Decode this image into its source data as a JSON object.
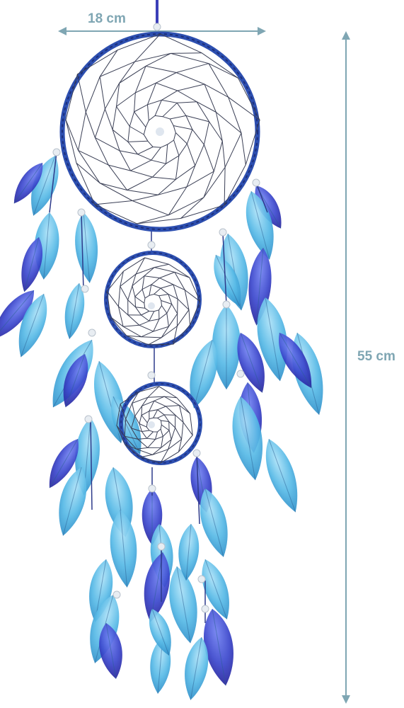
{
  "dimensions": {
    "width_label": "18 cm",
    "height_label": "55 cm"
  },
  "colors": {
    "measure_line": "#7fa6b3",
    "hoop": "#2d4fb0",
    "hoop_dark": "#1c2f7a",
    "web_thread": "#3a3f55",
    "bead": "#e8edf2",
    "feather_light": "#4fb3e3",
    "feather_sky": "#7fcdf0",
    "feather_royal": "#3b4ccf",
    "feather_indigo": "#4a2db0"
  },
  "object": {
    "name": "dream-catcher",
    "rings": 3,
    "feather_colors": [
      "light-blue",
      "sky-blue",
      "royal-blue",
      "indigo"
    ]
  }
}
